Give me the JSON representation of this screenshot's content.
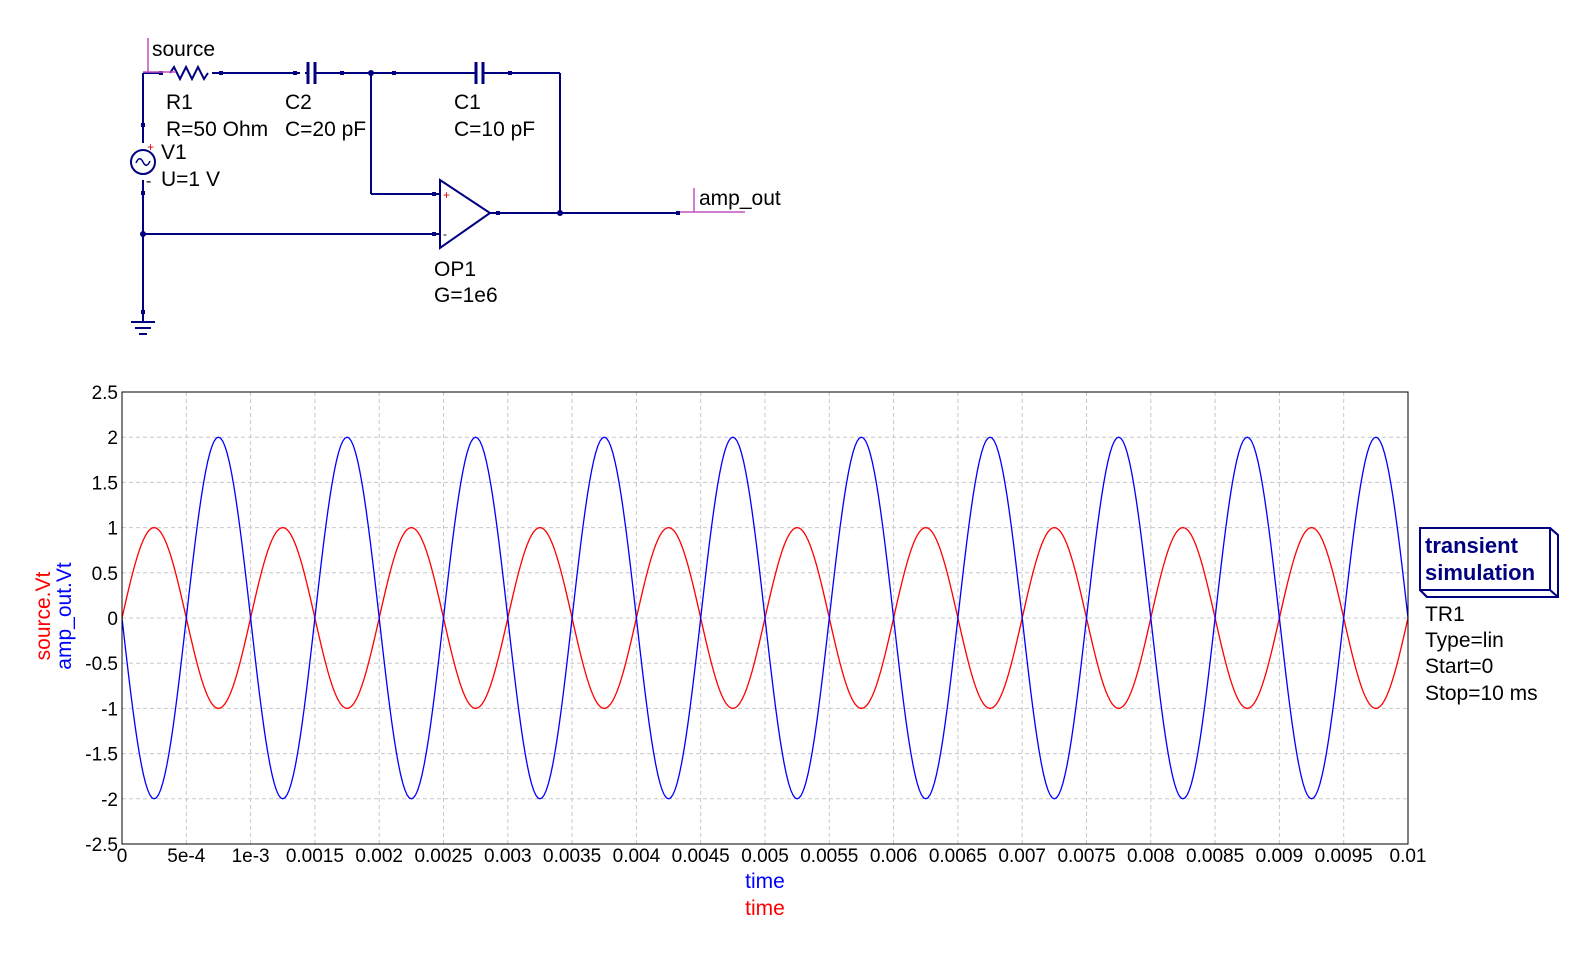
{
  "schematic": {
    "labels": {
      "source": "source",
      "amp_out": "amp_out"
    },
    "components": {
      "R1": {
        "name": "R1",
        "value": "R=50 Ohm"
      },
      "C2": {
        "name": "C2",
        "value": "C=20 pF"
      },
      "C1": {
        "name": "C1",
        "value": "C=10 pF"
      },
      "V1": {
        "name": "V1",
        "value": "U=1 V"
      },
      "OP1": {
        "name": "OP1",
        "value": "G=1e6"
      }
    },
    "symbols": {
      "plus": "+",
      "minus": "-"
    },
    "colors": {
      "wire": "#000080",
      "label_line": "#c050c0",
      "symbol_red": "#e00000"
    }
  },
  "simulation": {
    "title_line1": "transient",
    "title_line2": "simulation",
    "name": "TR1",
    "type": "Type=lin",
    "start": "Start=0",
    "stop": "Stop=10 ms"
  },
  "chart_data": {
    "type": "line",
    "x_tick_labels": [
      "0",
      "5e-4",
      "1e-3",
      "0.0015",
      "0.002",
      "0.0025",
      "0.003",
      "0.0035",
      "0.004",
      "0.0045",
      "0.005",
      "0.0055",
      "0.006",
      "0.0065",
      "0.007",
      "0.0075",
      "0.008",
      "0.0085",
      "0.009",
      "0.0095",
      "0.01"
    ],
    "y_tick_labels": [
      "2.5",
      "2",
      "1.5",
      "1",
      "0.5",
      "0",
      "-0.5",
      "-1",
      "-1.5",
      "-2",
      "-2.5"
    ],
    "xlim": [
      0,
      0.01
    ],
    "ylim": [
      -2.5,
      2.5
    ],
    "grid": true,
    "xlabel": [
      "time",
      "time"
    ],
    "ylabel": [
      "source.Vt",
      "amp_out.Vt"
    ],
    "series": [
      {
        "name": "source.Vt",
        "color": "#ff0000",
        "amplitude": 1,
        "frequency_hz": 1000,
        "phase": "sine",
        "samples_per_period": 60
      },
      {
        "name": "amp_out.Vt",
        "color": "#0000ff",
        "amplitude": 2,
        "frequency_hz": 1000,
        "phase": "inverted sine",
        "samples_per_period": 60
      }
    ],
    "colors": {
      "axes": "#000000",
      "grid": "#c8c8c8"
    }
  }
}
